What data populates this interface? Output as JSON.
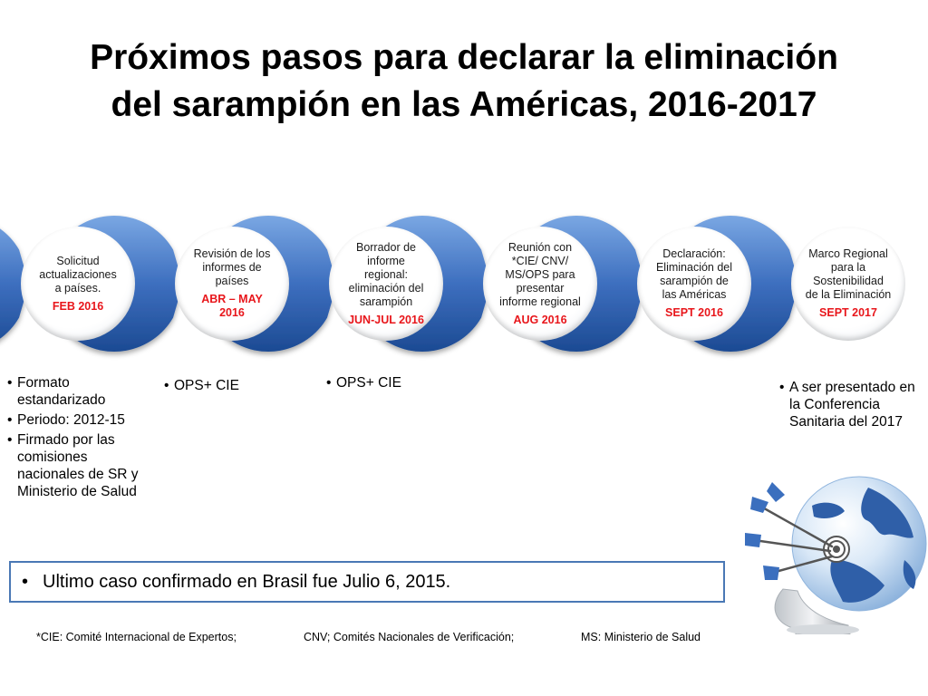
{
  "title": {
    "line1": "Próximos pasos para declarar la eliminación",
    "line2": "del sarampión en las Américas, 2016-2017"
  },
  "steps": [
    {
      "text": [
        "Solicitud",
        "actualizaciones",
        "a países."
      ],
      "date": "FEB 2016"
    },
    {
      "text": [
        "Revisión de los",
        "informes de",
        "países"
      ],
      "date": [
        "ABR – MAY",
        "2016"
      ]
    },
    {
      "text": [
        "Borrador de",
        "informe",
        "regional:",
        "eliminación del",
        "sarampión"
      ],
      "date": "JUN-JUL 2016"
    },
    {
      "text": [
        "Reunión con",
        "*CIE/ CNV/",
        "MS/OPS para",
        "presentar",
        "informe regional"
      ],
      "date": "AUG 2016"
    },
    {
      "text": [
        "Declaración:",
        "Eliminación del",
        "sarampión de",
        "las Américas"
      ],
      "date": "SEPT 2016"
    },
    {
      "text": [
        "Marco Regional",
        "para la",
        "Sostenibilidad",
        "de la Eliminación"
      ],
      "date": "SEPT 2017"
    }
  ],
  "notes": {
    "step1": [
      "Formato estandarizado",
      "Periodo: 2012-15",
      "Firmado por las comisiones nacionales de SR y Ministerio de Salud"
    ],
    "step2": [
      "OPS+ CIE"
    ],
    "step3": [
      "OPS+ CIE"
    ],
    "step6": [
      "A ser presentado en la Conferencia Sanitaria del 2017"
    ]
  },
  "highlight": "Ultimo caso confirmado en Brasil fue Julio 6, 2015.",
  "footnotes": [
    "*CIE: Comité Internacional de Expertos;",
    "CNV; Comités Nacionales de Verificación;",
    "MS: Ministerio de Salud"
  ],
  "colors": {
    "circle_blue_light": "#5b8fd6",
    "circle_blue_dark": "#1f4e9c",
    "date_red": "#e8161b",
    "box_border": "#4a78b5"
  },
  "icons": {
    "globe": "globe-with-darts-icon"
  }
}
